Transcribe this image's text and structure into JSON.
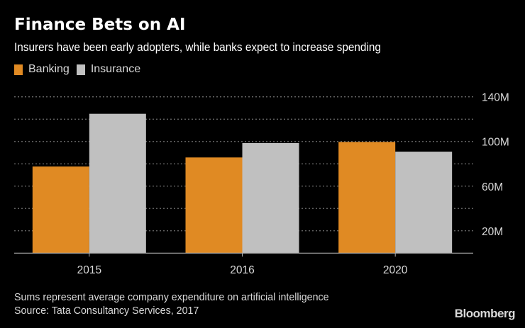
{
  "header": {
    "title": "Finance Bets on AI",
    "subtitle": "Insurers have been early adopters, while banks expect to increase spending"
  },
  "footer": {
    "note": "Sums represent average company expenditure on artificial intelligence",
    "source": "Source: Tata Consultancy Services, 2017",
    "brand": "Bloomberg"
  },
  "chart_data": {
    "type": "bar",
    "title": "Finance Bets on AI",
    "subtitle": "Insurers have been early adopters, while banks expect to increase spending",
    "categories": [
      "2015",
      "2016",
      "2020"
    ],
    "series": [
      {
        "name": "Banking",
        "color": "#e08a23",
        "values": [
          77.6,
          85.7,
          99.6
        ]
      },
      {
        "name": "Insurance",
        "color": "#c0c0c0",
        "values": [
          124.8,
          98.6,
          90.9
        ]
      }
    ],
    "xlabel": "",
    "ylabel": "",
    "unit": "M",
    "ylim": [
      0,
      140
    ],
    "yticks": [
      0,
      20,
      40,
      60,
      80,
      100,
      120,
      140
    ],
    "ytick_labels": [
      {
        "value": 20,
        "label": "20M"
      },
      {
        "value": 60,
        "label": "60M"
      },
      {
        "value": 100,
        "label": "100M"
      },
      {
        "value": 140,
        "label": "140M"
      }
    ],
    "grid": true,
    "y_axis_side": "right",
    "legend_position": "top-left",
    "background": "#000000"
  }
}
